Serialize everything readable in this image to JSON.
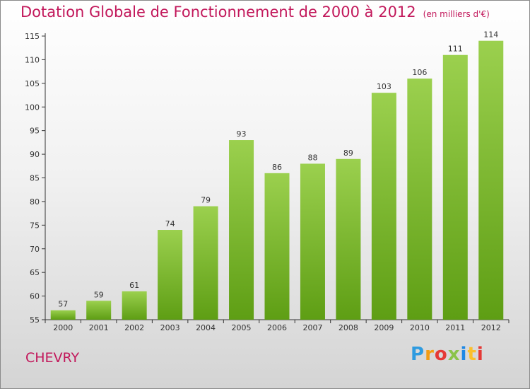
{
  "header": {
    "title": "Dotation Globale de Fonctionnement de 2000 à 2012",
    "subtitle": "(en milliers d'€)"
  },
  "footer": {
    "town": "CHEVRY",
    "brand": [
      "P",
      "r",
      "o",
      "x",
      "i",
      "t",
      "i"
    ]
  },
  "colors": {
    "title": "#c2185b",
    "bar_top": "#9bd04e",
    "bar_bottom": "#5e9e14",
    "axis": "#333333"
  },
  "chart_data": {
    "type": "bar",
    "title": "Dotation Globale de Fonctionnement de 2000 à 2012",
    "unit_label": "(en milliers d'€)",
    "categories": [
      "2000",
      "2001",
      "2002",
      "2003",
      "2004",
      "2005",
      "2006",
      "2007",
      "2008",
      "2009",
      "2010",
      "2011",
      "2012"
    ],
    "values": [
      57,
      59,
      61,
      74,
      79,
      93,
      86,
      88,
      89,
      103,
      106,
      111,
      114
    ],
    "ylim": [
      55,
      115
    ],
    "yticks": [
      55,
      60,
      65,
      70,
      75,
      80,
      85,
      90,
      95,
      100,
      105,
      110,
      115
    ],
    "grid": false,
    "xlabel": "",
    "ylabel": ""
  }
}
